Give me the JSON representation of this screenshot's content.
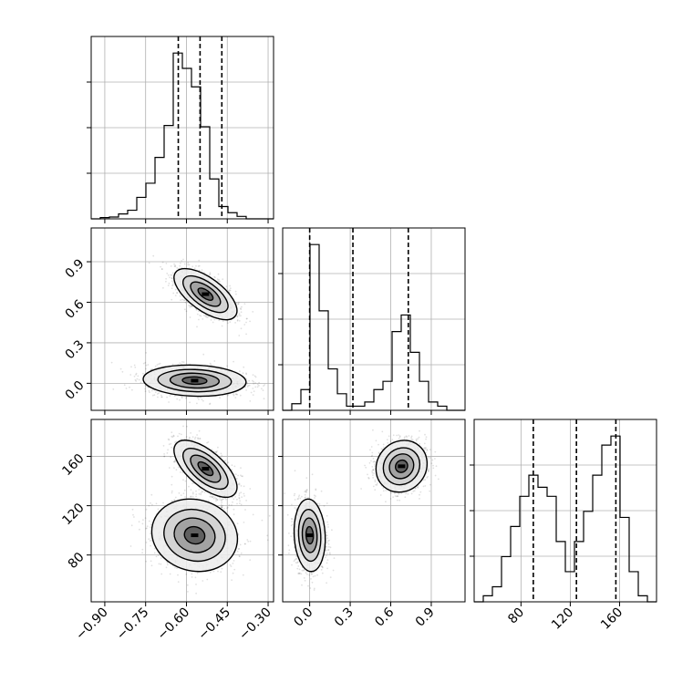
{
  "chart_data": {
    "type": "corner",
    "parameters": [
      {
        "range": [
          -0.95,
          -0.28
        ],
        "ticks": [
          -0.9,
          -0.75,
          -0.6,
          -0.45,
          -0.3
        ],
        "tick_labels": [
          "−0.90",
          "−0.75",
          "−0.60",
          "−0.45",
          "−0.30"
        ],
        "quantiles": [
          -0.63,
          -0.55,
          -0.47
        ],
        "hist_edges": [
          -0.95,
          -0.9165,
          -0.883,
          -0.8495,
          -0.816,
          -0.7825,
          -0.749,
          -0.7155,
          -0.682,
          -0.6485,
          -0.615,
          -0.5815,
          -0.548,
          -0.5145,
          -0.481,
          -0.4475,
          -0.414,
          -0.3805,
          -0.347,
          -0.3135,
          -0.28
        ],
        "hist_counts": [
          0,
          2,
          3,
          8,
          14,
          35,
          58,
          100,
          152,
          270,
          245,
          215,
          150,
          65,
          20,
          10,
          4,
          0,
          0,
          0
        ]
      },
      {
        "range": [
          -0.2,
          1.15
        ],
        "ticks": [
          0.0,
          0.3,
          0.6,
          0.9
        ],
        "tick_labels": [
          "0.0",
          "0.3",
          "0.6",
          "0.9"
        ],
        "quantiles": [
          0.0,
          0.32,
          0.73
        ],
        "hist_edges": [
          -0.2,
          -0.1325,
          -0.065,
          0.0025,
          0.07,
          0.1375,
          0.205,
          0.2725,
          0.34,
          0.4075,
          0.475,
          0.5425,
          0.61,
          0.6775,
          0.745,
          0.8125,
          0.88,
          0.9475,
          1.015,
          1.0825,
          1.15
        ],
        "hist_counts": [
          0,
          8,
          25,
          200,
          120,
          50,
          20,
          5,
          5,
          10,
          25,
          35,
          95,
          115,
          70,
          35,
          10,
          5,
          0,
          0
        ]
      },
      {
        "range": [
          42,
          190
        ],
        "ticks": [
          80,
          120,
          160
        ],
        "tick_labels": [
          "80",
          "120",
          "160"
        ],
        "quantiles": [
          90,
          125,
          157
        ],
        "hist_edges": [
          42,
          49.4,
          56.8,
          64.2,
          71.6,
          79,
          86.4,
          93.8,
          101.2,
          108.6,
          116,
          123.4,
          130.8,
          138.2,
          145.6,
          153,
          160.4,
          167.8,
          175.2,
          182.6,
          190
        ],
        "hist_counts": [
          0,
          2,
          5,
          15,
          25,
          35,
          42,
          38,
          35,
          20,
          10,
          20,
          30,
          42,
          52,
          55,
          28,
          10,
          2,
          0
        ]
      }
    ],
    "pairs": [
      {
        "x_param": 0,
        "y_param": 1,
        "modes": [
          {
            "mu": [
              -0.53,
              0.66
            ],
            "sd": [
              0.055,
              0.09
            ],
            "rho": -0.65,
            "weight": 0.5
          },
          {
            "mu": [
              -0.57,
              0.02
            ],
            "sd": [
              0.09,
              0.055
            ],
            "rho": -0.1,
            "weight": 0.5
          }
        ]
      },
      {
        "x_param": 0,
        "y_param": 2,
        "modes": [
          {
            "mu": [
              -0.53,
              150
            ],
            "sd": [
              0.055,
              11
            ],
            "rho": -0.65,
            "weight": 0.5
          },
          {
            "mu": [
              -0.57,
              96
            ],
            "sd": [
              0.075,
              14
            ],
            "rho": -0.1,
            "weight": 0.5
          }
        ]
      },
      {
        "x_param": 1,
        "y_param": 2,
        "modes": [
          {
            "mu": [
              0.68,
              152
            ],
            "sd": [
              0.09,
              10
            ],
            "rho": 0.1,
            "weight": 0.5
          },
          {
            "mu": [
              0.0,
              96
            ],
            "sd": [
              0.055,
              14
            ],
            "rho": -0.1,
            "weight": 0.5
          }
        ]
      }
    ],
    "grid": true
  }
}
